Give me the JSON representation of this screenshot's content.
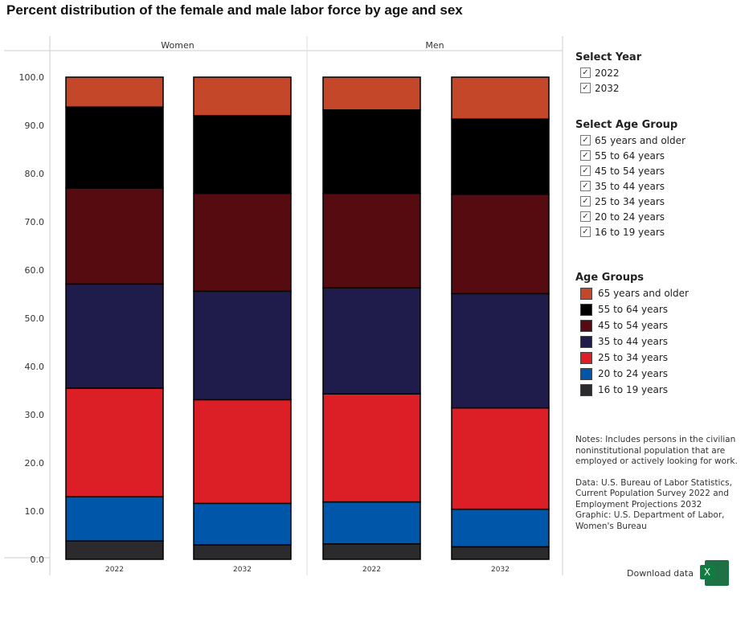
{
  "title": "Percent distribution of the female and male labor force by age and sex",
  "select_year": {
    "heading": "Select Year",
    "options": [
      {
        "label": "2022",
        "checked": true
      },
      {
        "label": "2032",
        "checked": true
      }
    ]
  },
  "select_age": {
    "heading": "Select Age Group",
    "options": [
      {
        "label": "65 years and older",
        "checked": true
      },
      {
        "label": "55 to 64 years",
        "checked": true
      },
      {
        "label": "45 to 54 years",
        "checked": true
      },
      {
        "label": "35 to 44 years",
        "checked": true
      },
      {
        "label": "25 to 34 years",
        "checked": true
      },
      {
        "label": "20 to 24 years",
        "checked": true
      },
      {
        "label": "16 to 19 years",
        "checked": true
      }
    ]
  },
  "check_mark": "✓",
  "notes": "Notes: Includes persons in the civilian noninstitutional population that are employed or actively looking for work.",
  "source": "Data: U.S. Bureau of Labor Statistics, Current Population Survey 2022 and Employment Projections 2032",
  "graphic": "Graphic: U.S. Department of Labor, Women's Bureau",
  "download_label": "Download data",
  "excel_icon_letter": "X",
  "chart_data": {
    "type": "bar",
    "stacked": true,
    "title": "Percent distribution of the female and male labor force by age and sex",
    "panels": [
      "Women",
      "Men"
    ],
    "categories": [
      "2022",
      "2032"
    ],
    "ylim": [
      0,
      100
    ],
    "yticks": [
      "0.0",
      "10.0",
      "20.0",
      "30.0",
      "40.0",
      "50.0",
      "60.0",
      "70.0",
      "80.0",
      "90.0",
      "100.0"
    ],
    "legend_title": "Age Groups",
    "legend_position": "right",
    "series": [
      {
        "name": "16 to 19 years",
        "color": "#2b2b2d",
        "values": {
          "Women": [
            3.8,
            3.0
          ],
          "Men": [
            3.2,
            2.6
          ]
        }
      },
      {
        "name": "20 to 24 years",
        "color": "#0056a8",
        "values": {
          "Women": [
            9.2,
            8.6
          ],
          "Men": [
            8.7,
            7.8
          ]
        }
      },
      {
        "name": "25 to 34 years",
        "color": "#dc1f26",
        "values": {
          "Women": [
            22.5,
            21.5
          ],
          "Men": [
            22.4,
            21.0
          ]
        }
      },
      {
        "name": "35 to 44 years",
        "color": "#1f1c4c",
        "values": {
          "Women": [
            21.6,
            22.5
          ],
          "Men": [
            22.0,
            23.7
          ]
        }
      },
      {
        "name": "45 to 54 years",
        "color": "#550b0f",
        "values": {
          "Women": [
            19.9,
            20.3
          ],
          "Men": [
            19.6,
            20.6
          ]
        }
      },
      {
        "name": "55 to 64 years",
        "color": "#000000",
        "values": {
          "Women": [
            16.8,
            16.1
          ],
          "Men": [
            17.3,
            15.6
          ]
        }
      },
      {
        "name": "65 years and older",
        "color": "#c4472a",
        "values": {
          "Women": [
            6.2,
            8.0
          ],
          "Men": [
            6.8,
            8.7
          ]
        }
      }
    ]
  }
}
